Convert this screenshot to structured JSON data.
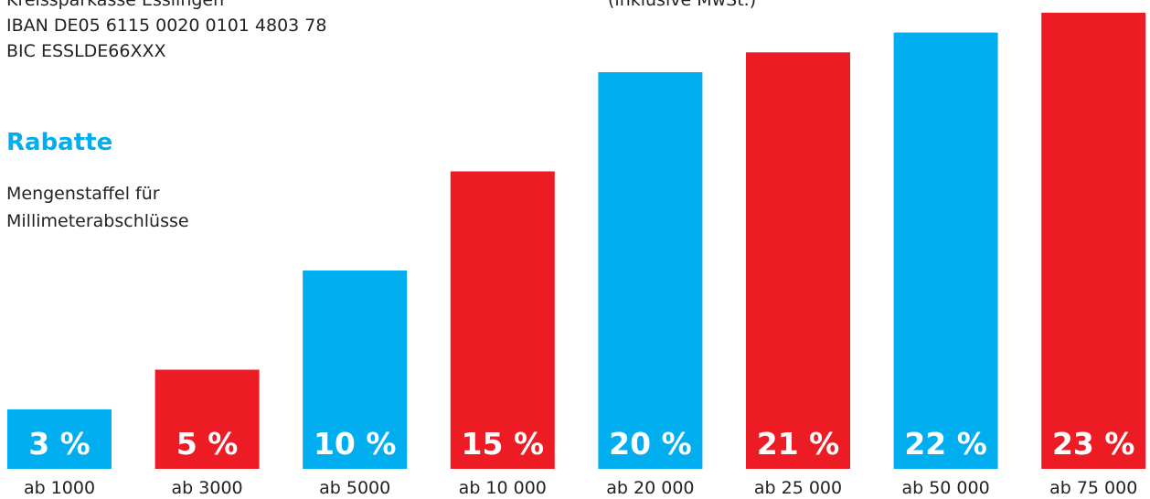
{
  "header": {
    "bank_name": "Kreissparkasse Esslingen",
    "iban": "IBAN DE05 6115 0020 0101 4803 78",
    "bic": "BIC ESSLDE66XXX",
    "vat_note": "(inklusive MwSt.)"
  },
  "section": {
    "title": "Rabatte",
    "subtitle_line1": "Mengenstaffel für",
    "subtitle_line2": "Millimeterabschlüsse"
  },
  "colors": {
    "blue": "#00aeef",
    "red": "#ed1c24",
    "title": "#00aeef"
  },
  "chart_data": {
    "type": "bar",
    "categories": [
      "ab 1000",
      "ab 3000",
      "ab 5000",
      "ab 10 000",
      "ab 20 000",
      "ab 25 000",
      "ab 50 000",
      "ab 75 000"
    ],
    "values": [
      3,
      5,
      10,
      15,
      20,
      21,
      22,
      23
    ],
    "value_labels": [
      "3 %",
      "5 %",
      "10 %",
      "15 %",
      "20 %",
      "21 %",
      "22 %",
      "23 %"
    ],
    "bar_colors": [
      "#00aeef",
      "#ed1c24",
      "#00aeef",
      "#ed1c24",
      "#00aeef",
      "#ed1c24",
      "#00aeef",
      "#ed1c24"
    ],
    "title": "Rabatte",
    "xlabel": "",
    "ylabel": "",
    "grid": false,
    "legend": "none"
  }
}
